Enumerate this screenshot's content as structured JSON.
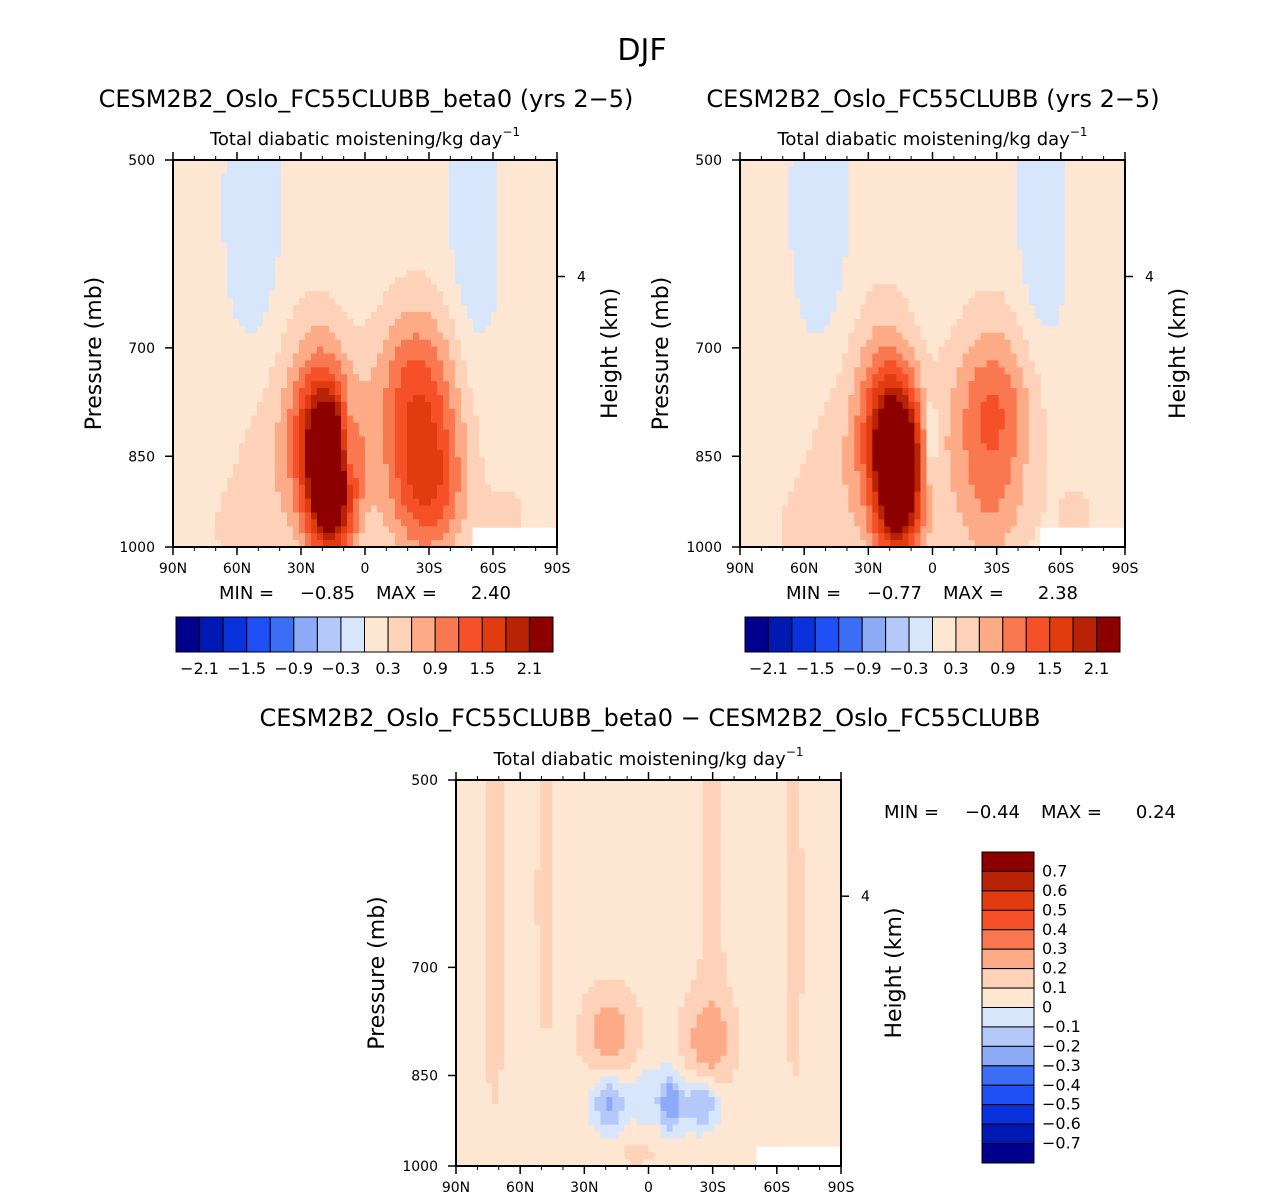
{
  "figure_title": "DJF",
  "chart_data": [
    {
      "type": "heatmap",
      "title": "CESM2B2_Oslo_FC55CLUBB_beta0 (yrs 2−5)",
      "subtitle": "Total diabatic moistening/kg day",
      "subtitle_exp": "−1",
      "xlabel": "",
      "ylabel": "Pressure (mb)",
      "ylabel_right": "Height (km)",
      "x_ticks": [
        "90N",
        "60N",
        "30N",
        "0",
        "30S",
        "60S",
        "90S"
      ],
      "x_values": [
        90,
        60,
        30,
        0,
        -30,
        -60,
        -90
      ],
      "y_ticks": [
        "500",
        "700",
        "850",
        "1000"
      ],
      "y_values": [
        500,
        700,
        850,
        1000
      ],
      "ylim": [
        500,
        1000
      ],
      "right_ticks": [
        "4"
      ],
      "right_tick_pressure": 616,
      "stats": {
        "min_label": "MIN =",
        "min": "−0.85",
        "max_label": "MAX =",
        "max": "2.40"
      },
      "colorbar_labels": [
        "−2.1",
        "−1.5",
        "−0.9",
        "−0.3",
        "0.3",
        "0.9",
        "1.5",
        "2.1"
      ],
      "colorbar_colors": [
        "#00008c",
        "#0019b4",
        "#0a32dc",
        "#1e50f5",
        "#3c6ef5",
        "#8caaf5",
        "#b4c8fa",
        "#d7e6fa",
        "#fde6d2",
        "#fdd2b9",
        "#fdaa87",
        "#fa7850",
        "#f55028",
        "#e13c0f",
        "#b92305",
        "#8c0000"
      ],
      "features": [
        {
          "lat": 16,
          "p": 910,
          "amp": 2.3,
          "sx": 8,
          "sp": 80
        },
        {
          "lat": 19,
          "p": 830,
          "amp": 1.2,
          "sx": 9,
          "sp": 60
        },
        {
          "lat": 22,
          "p": 760,
          "amp": 0.6,
          "sx": 10,
          "sp": 80
        },
        {
          "lat": 32,
          "p": 870,
          "amp": 0.5,
          "sx": 22,
          "sp": 130
        },
        {
          "lat": -25,
          "p": 840,
          "amp": 1.1,
          "sx": 14,
          "sp": 120
        },
        {
          "lat": -22,
          "p": 730,
          "amp": 0.45,
          "sx": 14,
          "sp": 60
        },
        {
          "lat": -32,
          "p": 900,
          "amp": 0.7,
          "sx": 12,
          "sp": 90
        },
        {
          "lat": 8,
          "p": 840,
          "amp": -0.9,
          "sx": 2.5,
          "sp": 45
        },
        {
          "lat": 52,
          "p": 570,
          "amp": -0.3,
          "sx": 8,
          "sp": 100
        },
        {
          "lat": -50,
          "p": 570,
          "amp": -0.3,
          "sx": 7,
          "sp": 100
        },
        {
          "lat": 62,
          "p": 975,
          "amp": 0.2,
          "sx": 14,
          "sp": 60
        },
        {
          "lat": -68,
          "p": 950,
          "amp": 0.3,
          "sx": 10,
          "sp": 60
        }
      ]
    },
    {
      "type": "heatmap",
      "title": "CESM2B2_Oslo_FC55CLUBB (yrs 2−5)",
      "subtitle": "Total diabatic moistening/kg day",
      "subtitle_exp": "−1",
      "xlabel": "",
      "ylabel": "Pressure (mb)",
      "ylabel_right": "Height (km)",
      "x_ticks": [
        "90N",
        "60N",
        "30N",
        "0",
        "30S",
        "60S",
        "90S"
      ],
      "x_values": [
        90,
        60,
        30,
        0,
        -30,
        -60,
        -90
      ],
      "y_ticks": [
        "500",
        "700",
        "850",
        "1000"
      ],
      "y_values": [
        500,
        700,
        850,
        1000
      ],
      "ylim": [
        500,
        1000
      ],
      "right_ticks": [
        "4"
      ],
      "right_tick_pressure": 616,
      "stats": {
        "min_label": "MIN =",
        "min": "−0.77",
        "max_label": "MAX =",
        "max": "2.38"
      },
      "colorbar_labels": [
        "−2.1",
        "−1.5",
        "−0.9",
        "−0.3",
        "0.3",
        "0.9",
        "1.5",
        "2.1"
      ],
      "colorbar_colors": [
        "#00008c",
        "#0019b4",
        "#0a32dc",
        "#1e50f5",
        "#3c6ef5",
        "#8caaf5",
        "#b4c8fa",
        "#d7e6fa",
        "#fde6d2",
        "#fdd2b9",
        "#fdaa87",
        "#fa7850",
        "#f55028",
        "#e13c0f",
        "#b92305",
        "#8c0000"
      ],
      "features": [
        {
          "lat": 16,
          "p": 910,
          "amp": 2.3,
          "sx": 8,
          "sp": 80
        },
        {
          "lat": 18,
          "p": 820,
          "amp": 1.3,
          "sx": 9,
          "sp": 60
        },
        {
          "lat": 22,
          "p": 750,
          "amp": 0.6,
          "sx": 10,
          "sp": 80
        },
        {
          "lat": 32,
          "p": 880,
          "amp": 0.5,
          "sx": 22,
          "sp": 130
        },
        {
          "lat": -27,
          "p": 860,
          "amp": 1.0,
          "sx": 14,
          "sp": 130
        },
        {
          "lat": -30,
          "p": 760,
          "amp": 0.4,
          "sx": 14,
          "sp": 60
        },
        {
          "lat": 1,
          "p": 830,
          "amp": -0.7,
          "sx": 2.5,
          "sp": 50
        },
        {
          "lat": 52,
          "p": 570,
          "amp": -0.3,
          "sx": 8,
          "sp": 100
        },
        {
          "lat": -50,
          "p": 570,
          "amp": -0.3,
          "sx": 7,
          "sp": 100
        },
        {
          "lat": 62,
          "p": 975,
          "amp": 0.2,
          "sx": 14,
          "sp": 60
        },
        {
          "lat": -68,
          "p": 950,
          "amp": 0.3,
          "sx": 10,
          "sp": 60
        }
      ]
    },
    {
      "type": "heatmap",
      "title": "CESM2B2_Oslo_FC55CLUBB_beta0 − CESM2B2_Oslo_FC55CLUBB",
      "subtitle": "Total diabatic moistening/kg day",
      "subtitle_exp": "−1",
      "xlabel": "",
      "ylabel": "Pressure (mb)",
      "ylabel_right": "Height (km)",
      "x_ticks": [
        "90N",
        "60N",
        "30N",
        "0",
        "30S",
        "60S",
        "90S"
      ],
      "x_values": [
        90,
        60,
        30,
        0,
        -30,
        -60,
        -90
      ],
      "y_ticks": [
        "500",
        "700",
        "850",
        "1000"
      ],
      "y_values": [
        500,
        700,
        850,
        1000
      ],
      "ylim": [
        500,
        1000
      ],
      "right_ticks": [
        "4"
      ],
      "right_tick_pressure": 616,
      "stats": {
        "min_label": "MIN =",
        "min": "−0.44",
        "max_label": "MAX =",
        "max": "0.24"
      },
      "colorbar_labels": [
        "0.7",
        "0.6",
        "0.5",
        "0.4",
        "0.3",
        "0.2",
        "0.1",
        "0",
        "−0.1",
        "−0.2",
        "−0.3",
        "−0.4",
        "−0.5",
        "−0.6",
        "−0.7"
      ],
      "colorbar_colors": [
        "#8c0000",
        "#b92305",
        "#e13c0f",
        "#f55028",
        "#fa7850",
        "#fdaa87",
        "#fdd2b9",
        "#fde6d2",
        "#d7e6fa",
        "#b4c8fa",
        "#8caaf5",
        "#3c6ef5",
        "#1e50f5",
        "#0a32dc",
        "#0019b4",
        "#00008c"
      ],
      "features": [
        {
          "lat": 18,
          "p": 790,
          "amp": 0.22,
          "sx": 9,
          "sp": 45
        },
        {
          "lat": -28,
          "p": 800,
          "amp": 0.2,
          "sx": 9,
          "sp": 45
        },
        {
          "lat": 18,
          "p": 895,
          "amp": -0.28,
          "sx": 6,
          "sp": 35
        },
        {
          "lat": -10,
          "p": 895,
          "amp": -0.35,
          "sx": 4,
          "sp": 35
        },
        {
          "lat": -25,
          "p": 895,
          "amp": -0.28,
          "sx": 6,
          "sp": 30
        },
        {
          "lat": 2,
          "p": 890,
          "amp": -0.15,
          "sx": 4,
          "sp": 40
        },
        {
          "lat": 72,
          "p": 650,
          "amp": 0.08,
          "sx": 5,
          "sp": 250
        },
        {
          "lat": 48,
          "p": 620,
          "amp": 0.07,
          "sx": 5,
          "sp": 200
        },
        {
          "lat": -30,
          "p": 620,
          "amp": 0.07,
          "sx": 6,
          "sp": 200
        },
        {
          "lat": -68,
          "p": 650,
          "amp": 0.07,
          "sx": 5,
          "sp": 250
        },
        {
          "lat": 4,
          "p": 960,
          "amp": 0.08,
          "sx": 10,
          "sp": 40
        }
      ]
    }
  ]
}
